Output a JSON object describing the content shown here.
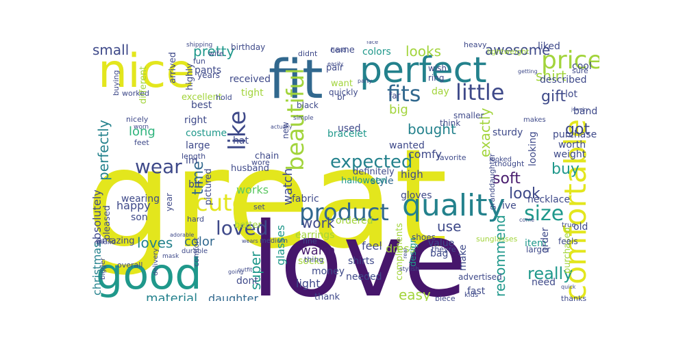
{
  "palette": {
    "yellow": "#e3e61d",
    "lime": "#a2d43b",
    "green": "#5cc863",
    "sea": "#2eb37c",
    "teal": "#1f988b",
    "cyan": "#23818c",
    "blue": "#31688e",
    "indigo": "#3e4989",
    "purple": "#46166b",
    "violet": "#481c6e"
  },
  "words": [
    {
      "text": "great",
      "color": "yellow"
    },
    {
      "text": "love",
      "color": "purple"
    },
    {
      "text": "fit",
      "color": "blue"
    },
    {
      "text": "nice",
      "color": "yellow"
    },
    {
      "text": "perfect",
      "color": "cyan"
    },
    {
      "text": "good",
      "color": "teal"
    },
    {
      "text": "comfortable",
      "color": "yellow"
    },
    {
      "text": "quality",
      "color": "cyan"
    },
    {
      "text": "product",
      "color": "blue"
    },
    {
      "text": "beautiful",
      "color": "lime"
    },
    {
      "text": "price",
      "color": "lime"
    },
    {
      "text": "little",
      "color": "indigo"
    },
    {
      "text": "fits",
      "color": "blue"
    },
    {
      "text": "cute",
      "color": "yellow"
    },
    {
      "text": "like",
      "color": "indigo"
    },
    {
      "text": "size",
      "color": "teal"
    },
    {
      "text": "wear",
      "color": "indigo"
    },
    {
      "text": "loved",
      "color": "indigo"
    },
    {
      "text": "expected",
      "color": "cyan"
    },
    {
      "text": "small",
      "color": "indigo"
    },
    {
      "text": "pretty",
      "color": "teal"
    },
    {
      "text": "awesome",
      "color": "indigo"
    },
    {
      "text": "looks",
      "color": "lime"
    },
    {
      "text": "shirt",
      "color": "lime"
    },
    {
      "text": "gift",
      "color": "indigo"
    },
    {
      "text": "got",
      "color": "indigo"
    },
    {
      "text": "bought",
      "color": "cyan"
    },
    {
      "text": "soft",
      "color": "violet"
    },
    {
      "text": "work",
      "color": "indigo"
    },
    {
      "text": "loves",
      "color": "cyan"
    },
    {
      "text": "really",
      "color": "teal"
    },
    {
      "text": "easy",
      "color": "lime"
    },
    {
      "text": "material",
      "color": "cyan"
    },
    {
      "text": "recommend",
      "color": "teal"
    },
    {
      "text": "buy",
      "color": "teal"
    },
    {
      "text": "look",
      "color": "indigo"
    },
    {
      "text": "perfectly",
      "color": "cyan"
    },
    {
      "text": "watch",
      "color": "indigo"
    },
    {
      "text": "time",
      "color": "blue"
    },
    {
      "text": "exactly",
      "color": "lime"
    },
    {
      "text": "use",
      "color": "indigo"
    },
    {
      "text": "warm",
      "color": "violet"
    },
    {
      "text": "super",
      "color": "teal"
    },
    {
      "text": "color",
      "color": "blue"
    },
    {
      "text": "works",
      "color": "green"
    },
    {
      "text": "absolutely",
      "color": "indigo"
    },
    {
      "text": "christmas",
      "color": "cyan"
    },
    {
      "text": "long",
      "color": "sea"
    },
    {
      "text": "happy",
      "color": "indigo"
    },
    {
      "text": "daughter",
      "color": "blue"
    },
    {
      "text": "glasses",
      "color": "teal"
    },
    {
      "text": "light",
      "color": "indigo"
    },
    {
      "text": "cool",
      "color": "indigo"
    },
    {
      "text": "liked",
      "color": "indigo"
    },
    {
      "text": "arrived",
      "color": "indigo"
    },
    {
      "text": "highly",
      "color": "indigo"
    },
    {
      "text": "pants",
      "color": "indigo"
    },
    {
      "text": "received",
      "color": "indigo"
    },
    {
      "text": "tight",
      "color": "lime"
    },
    {
      "text": "best",
      "color": "indigo"
    },
    {
      "text": "excellent",
      "color": "lime"
    },
    {
      "text": "different",
      "color": "lime"
    },
    {
      "text": "came",
      "color": "indigo"
    },
    {
      "text": "colors",
      "color": "teal"
    },
    {
      "text": "pair",
      "color": "indigo"
    },
    {
      "text": "want",
      "color": "lime"
    },
    {
      "text": "day",
      "color": "lime"
    },
    {
      "text": "big",
      "color": "lime"
    },
    {
      "text": "used",
      "color": "indigo"
    },
    {
      "text": "bracelet",
      "color": "teal"
    },
    {
      "text": "wanted",
      "color": "indigo"
    },
    {
      "text": "definitely",
      "color": "indigo"
    },
    {
      "text": "comfy",
      "color": "indigo"
    },
    {
      "text": "high",
      "color": "indigo"
    },
    {
      "text": "style",
      "color": "blue"
    },
    {
      "text": "gloves",
      "color": "indigo"
    },
    {
      "text": "halloween",
      "color": "teal"
    },
    {
      "text": "right",
      "color": "indigo"
    },
    {
      "text": "costume",
      "color": "teal"
    },
    {
      "text": "large",
      "color": "indigo"
    },
    {
      "text": "im",
      "color": "indigo"
    },
    {
      "text": "hat",
      "color": "indigo"
    },
    {
      "text": "chain",
      "color": "indigo"
    },
    {
      "text": "husband",
      "color": "indigo"
    },
    {
      "text": "pictured",
      "color": "indigo"
    },
    {
      "text": "bit",
      "color": "indigo"
    },
    {
      "text": "year",
      "color": "indigo"
    },
    {
      "text": "wearing",
      "color": "indigo"
    },
    {
      "text": "son",
      "color": "indigo"
    },
    {
      "text": "fabric",
      "color": "indigo"
    },
    {
      "text": "ordered",
      "color": "lime"
    },
    {
      "text": "better",
      "color": "lime"
    },
    {
      "text": "amazing",
      "color": "indigo"
    },
    {
      "text": "earrings",
      "color": "lime"
    },
    {
      "text": "socks",
      "color": "lime"
    },
    {
      "text": "dont",
      "color": "indigo"
    },
    {
      "text": "money",
      "color": "indigo"
    },
    {
      "text": "shirts",
      "color": "indigo"
    },
    {
      "text": "needed",
      "color": "indigo"
    },
    {
      "text": "dress",
      "color": "lime"
    },
    {
      "text": "feel",
      "color": "indigo"
    },
    {
      "text": "compliments",
      "color": "lime"
    },
    {
      "text": "design",
      "color": "teal"
    },
    {
      "text": "value",
      "color": "indigo"
    },
    {
      "text": "bag",
      "color": "indigo"
    },
    {
      "text": "fast",
      "color": "indigo"
    },
    {
      "text": "make",
      "color": "indigo"
    },
    {
      "text": "item",
      "color": "teal"
    },
    {
      "text": "order",
      "color": "indigo"
    },
    {
      "text": "need",
      "color": "indigo"
    },
    {
      "text": "purchased",
      "color": "lime"
    },
    {
      "text": "necklace",
      "color": "indigo"
    },
    {
      "text": "ive",
      "color": "indigo"
    },
    {
      "text": "old",
      "color": "indigo"
    },
    {
      "text": "feels",
      "color": "indigo"
    },
    {
      "text": "thanks",
      "color": "indigo"
    },
    {
      "text": "weight",
      "color": "indigo"
    },
    {
      "text": "worth",
      "color": "indigo"
    },
    {
      "text": "purchase",
      "color": "indigo"
    },
    {
      "text": "sturdy",
      "color": "indigo"
    },
    {
      "text": "looking",
      "color": "indigo"
    },
    {
      "text": "band",
      "color": "indigo"
    },
    {
      "text": "lot",
      "color": "indigo"
    },
    {
      "text": "described",
      "color": "indigo"
    },
    {
      "text": "thank",
      "color": "indigo"
    },
    {
      "text": "pleased",
      "color": "indigo"
    },
    {
      "text": "favorite",
      "color": "indigo"
    },
    {
      "text": "thought",
      "color": "indigo"
    },
    {
      "text": "looked",
      "color": "indigo"
    },
    {
      "text": "granddaughter",
      "color": "indigo"
    },
    {
      "text": "makes",
      "color": "indigo"
    },
    {
      "text": "smaller",
      "color": "indigo"
    },
    {
      "text": "think",
      "color": "indigo"
    },
    {
      "text": "black",
      "color": "indigo"
    },
    {
      "text": "quickly",
      "color": "indigo"
    },
    {
      "text": "years",
      "color": "indigo"
    },
    {
      "text": "wife",
      "color": "indigo"
    },
    {
      "text": "fun",
      "color": "indigo"
    },
    {
      "text": "birthday",
      "color": "indigo"
    },
    {
      "text": "shipping",
      "color": "indigo"
    },
    {
      "text": "buying",
      "color": "indigo"
    },
    {
      "text": "worked",
      "color": "indigo"
    },
    {
      "text": "nicely",
      "color": "indigo"
    },
    {
      "text": "worn",
      "color": "indigo"
    },
    {
      "text": "feet",
      "color": "indigo"
    },
    {
      "text": "length",
      "color": "indigo"
    },
    {
      "text": "hold",
      "color": "indigo"
    },
    {
      "text": "didnt",
      "color": "indigo"
    },
    {
      "text": "head",
      "color": "indigo"
    },
    {
      "text": "wish",
      "color": "indigo"
    },
    {
      "text": "ring",
      "color": "indigo"
    },
    {
      "text": "lightweight",
      "color": "lime"
    },
    {
      "text": "heavy",
      "color": "indigo"
    },
    {
      "text": "getting",
      "color": "indigo"
    },
    {
      "text": "sure",
      "color": "indigo"
    },
    {
      "text": "party",
      "color": "indigo"
    },
    {
      "text": "easily",
      "color": "indigo"
    },
    {
      "text": "face",
      "color": "indigo"
    },
    {
      "text": "far",
      "color": "indigo"
    },
    {
      "text": "wore",
      "color": "indigo"
    },
    {
      "text": "simple",
      "color": "indigo"
    },
    {
      "text": "actually",
      "color": "indigo"
    },
    {
      "text": "new",
      "color": "indigo"
    },
    {
      "text": "shoes",
      "color": "indigo"
    },
    {
      "text": "sunglasses",
      "color": "lime"
    },
    {
      "text": "theyre",
      "color": "indigo"
    },
    {
      "text": "fine",
      "color": "indigo"
    },
    {
      "text": "thing",
      "color": "indigo"
    },
    {
      "text": "advertised",
      "color": "indigo"
    },
    {
      "text": "cheap",
      "color": "indigo"
    },
    {
      "text": "piece",
      "color": "indigo"
    },
    {
      "text": "stylish",
      "color": "indigo"
    },
    {
      "text": "kids",
      "color": "indigo"
    },
    {
      "text": "quick",
      "color": "indigo"
    },
    {
      "text": "larger",
      "color": "indigo"
    },
    {
      "text": "true",
      "color": "indigo"
    },
    {
      "text": "come",
      "color": "indigo"
    },
    {
      "text": "set",
      "color": "indigo"
    },
    {
      "text": "hard",
      "color": "indigo"
    },
    {
      "text": "adorable",
      "color": "indigo"
    },
    {
      "text": "comfort",
      "color": "indigo"
    },
    {
      "text": "durable",
      "color": "indigo"
    },
    {
      "text": "delivery",
      "color": "indigo"
    },
    {
      "text": "mask",
      "color": "indigo"
    },
    {
      "text": "overall",
      "color": "indigo"
    },
    {
      "text": "bigger",
      "color": "indigo"
    },
    {
      "text": "friend",
      "color": "indigo"
    },
    {
      "text": "outfit",
      "color": "indigo"
    },
    {
      "text": "going",
      "color": "indigo"
    },
    {
      "text": "wears",
      "color": "indigo"
    },
    {
      "text": "medium",
      "color": "indigo"
    },
    {
      "text": "jewelry",
      "color": "indigo"
    },
    {
      "text": "real",
      "color": "indigo"
    },
    {
      "text": "br",
      "color": "indigo"
    }
  ]
}
